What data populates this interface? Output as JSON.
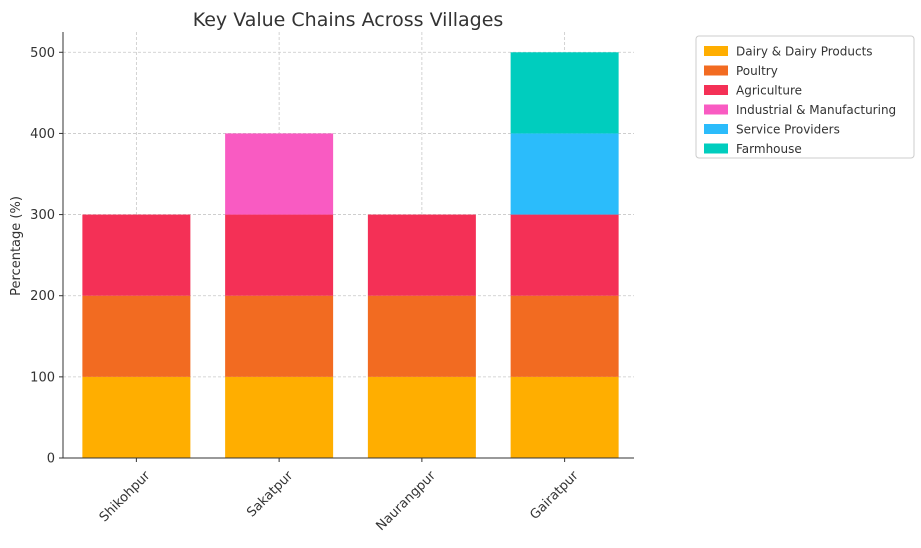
{
  "chart_data": {
    "type": "bar",
    "stacked": true,
    "title": "Key Value Chains Across Villages",
    "xlabel": "",
    "ylabel": "Percentage (%)",
    "categories": [
      "Shikohpur",
      "Sakatpur",
      "Naurangpur",
      "Gairatpur"
    ],
    "ylim": [
      0,
      525
    ],
    "yticks": [
      0,
      100,
      200,
      300,
      400,
      500
    ],
    "grid": true,
    "legend_position": "right, outside",
    "series": [
      {
        "name": "Dairy & Dairy Products",
        "color": "#FFAE00",
        "values": [
          100,
          100,
          100,
          100
        ]
      },
      {
        "name": "Poultry",
        "color": "#F26B21",
        "values": [
          100,
          100,
          100,
          100
        ]
      },
      {
        "name": "Agriculture",
        "color": "#F43056",
        "values": [
          100,
          100,
          100,
          100
        ]
      },
      {
        "name": "Industrial & Manufacturing",
        "color": "#F95BC2",
        "values": [
          0,
          100,
          0,
          0
        ]
      },
      {
        "name": "Service Providers",
        "color": "#2BBCFB",
        "values": [
          0,
          0,
          0,
          100
        ]
      },
      {
        "name": "Farmhouse",
        "color": "#00CDBE",
        "values": [
          0,
          0,
          0,
          100
        ]
      }
    ]
  }
}
